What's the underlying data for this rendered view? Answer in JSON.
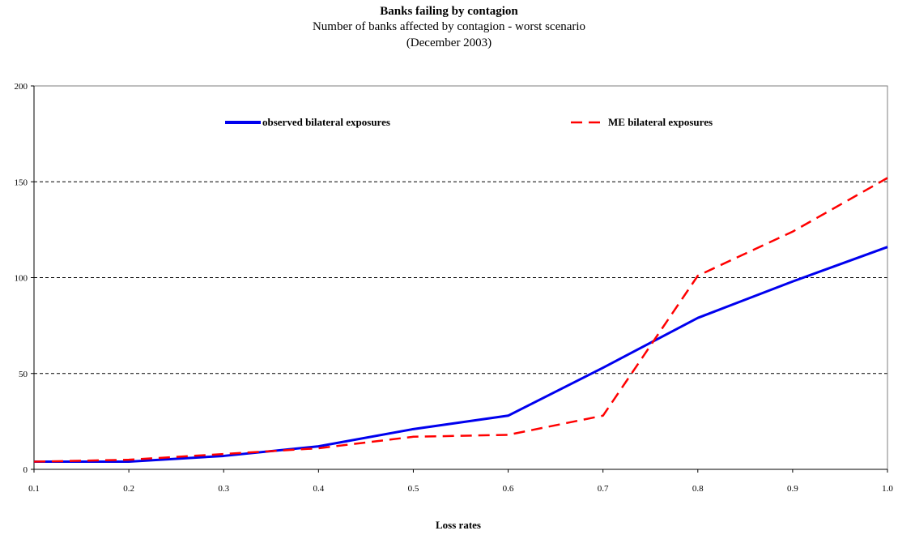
{
  "chart_data": {
    "type": "line",
    "title": "Banks failing by contagion",
    "subtitle": [
      "Number of banks affected by contagion - worst scenario",
      "(December 2003)"
    ],
    "xlabel": "Loss rates",
    "ylabel": "",
    "x": [
      0.1,
      0.2,
      0.3,
      0.4,
      0.5,
      0.6,
      0.7,
      0.8,
      0.9,
      1.0
    ],
    "x_tick_labels": [
      "0.1",
      "0.2",
      "0.3",
      "0.4",
      "0.5",
      "0.6",
      "0.7",
      "0.8",
      "0.9",
      "1.0"
    ],
    "y_ticks": [
      0,
      50,
      100,
      150,
      200
    ],
    "xlim": [
      0.1,
      1.0
    ],
    "ylim": [
      0,
      200
    ],
    "grid": "horizontal dashed",
    "legend_placement": "top",
    "series": [
      {
        "name": "observed bilateral exposures",
        "color": "#0000ee",
        "style": "solid",
        "values": [
          4,
          4,
          7,
          12,
          21,
          28,
          53,
          79,
          98,
          116
        ]
      },
      {
        "name": "ME bilateral exposures",
        "color": "#ff0000",
        "style": "dashed",
        "values": [
          4,
          5,
          8,
          11,
          17,
          18,
          28,
          101,
          124,
          152
        ]
      }
    ]
  }
}
